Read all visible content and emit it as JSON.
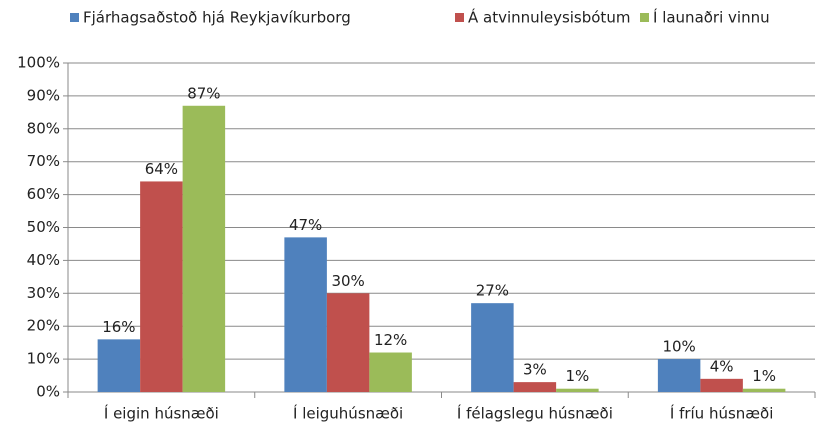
{
  "chart_data": {
    "type": "bar",
    "categories": [
      "Í eigin húsnæði",
      "Í leiguhúsnæði",
      "Í félagslegu húsnæði",
      "Í fríu húsnæði"
    ],
    "series": [
      {
        "name": "Fjárhagsaðstoð hjá Reykjavíkurborg",
        "color": "#4f81bd",
        "values": [
          16,
          47,
          27,
          10
        ],
        "value_labels": [
          "16%",
          "47%",
          "27%",
          "10%"
        ]
      },
      {
        "name": "Á atvinnuleysisbótum",
        "color": "#c0504d",
        "values": [
          64,
          30,
          3,
          4
        ],
        "value_labels": [
          "64%",
          "30%",
          "3%",
          "4%"
        ]
      },
      {
        "name": "Í launaðri vinnu",
        "color": "#9bbb59",
        "values": [
          87,
          12,
          1,
          1
        ],
        "value_labels": [
          "87%",
          "12%",
          "1%",
          "1%"
        ]
      }
    ],
    "ylim": [
      0,
      100
    ],
    "yticks": [
      {
        "value": 0,
        "label": "0%"
      },
      {
        "value": 10,
        "label": "10%"
      },
      {
        "value": 20,
        "label": "20%"
      },
      {
        "value": 30,
        "label": "30%"
      },
      {
        "value": 40,
        "label": "40%"
      },
      {
        "value": 50,
        "label": "50%"
      },
      {
        "value": 60,
        "label": "60%"
      },
      {
        "value": 70,
        "label": "70%"
      },
      {
        "value": 80,
        "label": "80%"
      },
      {
        "value": 90,
        "label": "90%"
      },
      {
        "value": 100,
        "label": "100%"
      }
    ],
    "grid": true,
    "legend": "top"
  }
}
